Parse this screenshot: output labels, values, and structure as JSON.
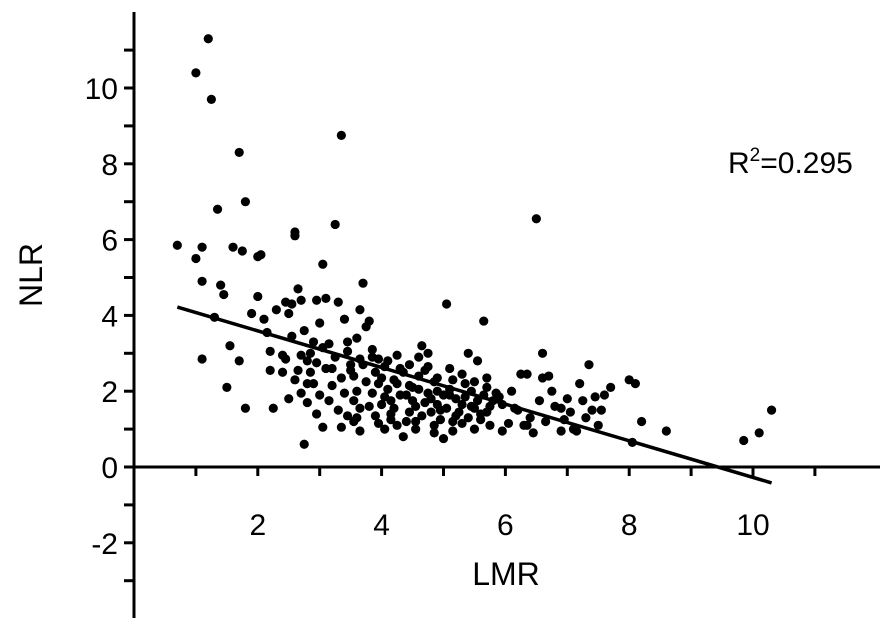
{
  "chart_data": {
    "type": "scatter",
    "title": "",
    "xlabel": "LMR",
    "ylabel": "NLR",
    "xlim": [
      0,
      12
    ],
    "ylim": [
      -4,
      12
    ],
    "x_ticks": [
      2,
      4,
      6,
      8,
      10
    ],
    "x_tick_labels": [
      "2",
      "4",
      "6",
      "8",
      "10"
    ],
    "y_ticks": [
      -2,
      0,
      2,
      4,
      6,
      8,
      10
    ],
    "y_tick_labels": [
      "-2",
      "0",
      "2",
      "4",
      "6",
      "8",
      "10"
    ],
    "grid": false,
    "annotation": {
      "prefix": "R",
      "superscript": "2",
      "suffix": "=0.295"
    },
    "trendline": {
      "x": [
        0.7,
        10.3
      ],
      "y": [
        4.22,
        -0.42
      ]
    },
    "colors": {
      "points": "#000000",
      "trendline": "#000000",
      "axes": "#000000"
    },
    "points": [
      [
        0.7,
        5.85
      ],
      [
        1.0,
        10.4
      ],
      [
        1.0,
        5.5
      ],
      [
        1.1,
        5.8
      ],
      [
        1.2,
        11.3
      ],
      [
        1.25,
        9.7
      ],
      [
        1.35,
        6.8
      ],
      [
        1.4,
        4.8
      ],
      [
        1.45,
        4.55
      ],
      [
        1.1,
        4.9
      ],
      [
        1.3,
        3.95
      ],
      [
        1.1,
        2.85
      ],
      [
        1.55,
        3.2
      ],
      [
        1.5,
        2.1
      ],
      [
        1.6,
        5.8
      ],
      [
        1.7,
        8.3
      ],
      [
        1.75,
        5.7
      ],
      [
        1.8,
        7.0
      ],
      [
        1.8,
        1.55
      ],
      [
        1.7,
        2.8
      ],
      [
        1.9,
        4.05
      ],
      [
        2.0,
        5.55
      ],
      [
        2.05,
        5.6
      ],
      [
        2.0,
        4.5
      ],
      [
        2.1,
        3.9
      ],
      [
        2.15,
        3.55
      ],
      [
        2.2,
        3.05
      ],
      [
        2.2,
        2.55
      ],
      [
        2.25,
        1.55
      ],
      [
        2.3,
        4.15
      ],
      [
        2.4,
        2.5
      ],
      [
        2.45,
        4.35
      ],
      [
        2.5,
        4.05
      ],
      [
        2.55,
        4.3
      ],
      [
        2.6,
        6.1
      ],
      [
        2.6,
        6.2
      ],
      [
        2.65,
        4.7
      ],
      [
        2.7,
        4.4
      ],
      [
        2.75,
        3.6
      ],
      [
        2.7,
        2.95
      ],
      [
        2.8,
        2.8
      ],
      [
        2.8,
        2.2
      ],
      [
        2.85,
        2.5
      ],
      [
        2.9,
        3.3
      ],
      [
        2.95,
        4.4
      ],
      [
        3.0,
        3.8
      ],
      [
        3.05,
        5.35
      ],
      [
        3.1,
        4.45
      ],
      [
        3.15,
        3.25
      ],
      [
        3.2,
        2.6
      ],
      [
        3.25,
        6.4
      ],
      [
        3.3,
        4.35
      ],
      [
        3.35,
        8.75
      ],
      [
        3.4,
        3.9
      ],
      [
        3.45,
        3.05
      ],
      [
        3.5,
        2.7
      ],
      [
        3.55,
        2.4
      ],
      [
        3.6,
        3.4
      ],
      [
        3.6,
        1.3
      ],
      [
        3.65,
        4.15
      ],
      [
        3.7,
        4.85
      ],
      [
        3.75,
        3.7
      ],
      [
        3.8,
        3.85
      ],
      [
        3.85,
        2.9
      ],
      [
        3.9,
        2.5
      ],
      [
        3.95,
        2.2
      ],
      [
        4.0,
        1.65
      ],
      [
        4.05,
        1.0
      ],
      [
        4.1,
        2.8
      ],
      [
        4.15,
        1.4
      ],
      [
        4.2,
        2.3
      ],
      [
        4.3,
        2.6
      ],
      [
        4.35,
        0.8
      ],
      [
        4.4,
        1.9
      ],
      [
        4.45,
        1.45
      ],
      [
        4.5,
        2.1
      ],
      [
        4.55,
        1.2
      ],
      [
        4.6,
        2.4
      ],
      [
        4.65,
        3.2
      ],
      [
        4.7,
        1.7
      ],
      [
        4.75,
        3.0
      ],
      [
        4.8,
        1.8
      ],
      [
        4.85,
        1.1
      ],
      [
        4.9,
        2.0
      ],
      [
        4.95,
        1.5
      ],
      [
        5.0,
        0.75
      ],
      [
        5.05,
        4.3
      ],
      [
        5.1,
        1.9
      ],
      [
        5.15,
        2.3
      ],
      [
        5.2,
        1.35
      ],
      [
        5.3,
        1.15
      ],
      [
        5.35,
        2.2
      ],
      [
        5.4,
        3.0
      ],
      [
        5.45,
        1.6
      ],
      [
        5.5,
        1.0
      ],
      [
        5.55,
        2.8
      ],
      [
        5.6,
        1.4
      ],
      [
        5.65,
        3.85
      ],
      [
        5.7,
        2.1
      ],
      [
        5.8,
        1.75
      ],
      [
        5.9,
        1.85
      ],
      [
        6.2,
        1.5
      ],
      [
        6.25,
        2.45
      ],
      [
        6.3,
        1.1
      ],
      [
        6.4,
        1.3
      ],
      [
        6.45,
        0.9
      ],
      [
        6.5,
        6.55
      ],
      [
        6.55,
        1.75
      ],
      [
        6.6,
        3.0
      ],
      [
        6.65,
        1.2
      ],
      [
        6.7,
        2.4
      ],
      [
        6.8,
        1.6
      ],
      [
        6.9,
        0.95
      ],
      [
        7.0,
        1.8
      ],
      [
        7.1,
        1.0
      ],
      [
        7.2,
        2.2
      ],
      [
        7.3,
        1.3
      ],
      [
        7.35,
        2.7
      ],
      [
        7.4,
        1.5
      ],
      [
        7.5,
        1.1
      ],
      [
        7.6,
        1.9
      ],
      [
        7.7,
        2.1
      ],
      [
        8.0,
        2.3
      ],
      [
        8.05,
        0.65
      ],
      [
        8.1,
        2.2
      ],
      [
        8.2,
        1.2
      ],
      [
        8.6,
        0.95
      ],
      [
        9.85,
        0.7
      ],
      [
        10.1,
        0.9
      ],
      [
        10.3,
        1.5
      ],
      [
        2.5,
        1.8
      ],
      [
        2.6,
        2.3
      ],
      [
        2.7,
        1.95
      ],
      [
        2.9,
        2.2
      ],
      [
        3.0,
        1.9
      ],
      [
        3.1,
        2.6
      ],
      [
        3.15,
        1.75
      ],
      [
        3.2,
        2.15
      ],
      [
        3.3,
        1.5
      ],
      [
        3.35,
        2.35
      ],
      [
        3.4,
        1.95
      ],
      [
        3.45,
        1.35
      ],
      [
        3.5,
        2.55
      ],
      [
        3.55,
        1.75
      ],
      [
        3.6,
        2.0
      ],
      [
        3.65,
        1.55
      ],
      [
        3.7,
        2.7
      ],
      [
        3.75,
        2.25
      ],
      [
        3.8,
        1.6
      ],
      [
        3.85,
        1.95
      ],
      [
        3.9,
        1.35
      ],
      [
        3.95,
        2.85
      ],
      [
        4.0,
        2.35
      ],
      [
        4.05,
        1.85
      ],
      [
        4.1,
        2.05
      ],
      [
        4.15,
        1.75
      ],
      [
        4.2,
        1.55
      ],
      [
        4.25,
        2.2
      ],
      [
        4.3,
        1.9
      ],
      [
        4.35,
        2.5
      ],
      [
        4.4,
        1.2
      ],
      [
        4.45,
        2.15
      ],
      [
        4.5,
        1.75
      ],
      [
        4.55,
        1.6
      ],
      [
        4.6,
        2.05
      ],
      [
        4.65,
        1.35
      ],
      [
        4.7,
        2.55
      ],
      [
        4.75,
        1.95
      ],
      [
        4.8,
        1.45
      ],
      [
        4.85,
        2.25
      ],
      [
        4.9,
        1.65
      ],
      [
        4.95,
        1.25
      ],
      [
        5.0,
        1.9
      ],
      [
        5.05,
        1.55
      ],
      [
        5.1,
        2.05
      ],
      [
        5.15,
        1.2
      ],
      [
        5.2,
        1.8
      ],
      [
        5.25,
        1.45
      ],
      [
        5.3,
        1.65
      ],
      [
        5.35,
        1.85
      ],
      [
        5.4,
        1.3
      ],
      [
        5.45,
        2.0
      ],
      [
        5.5,
        1.55
      ],
      [
        5.55,
        1.75
      ],
      [
        5.6,
        1.25
      ],
      [
        5.65,
        1.9
      ],
      [
        5.7,
        1.45
      ],
      [
        5.75,
        1.6
      ],
      [
        5.85,
        1.95
      ],
      [
        5.95,
        1.65
      ],
      [
        2.4,
        2.95
      ],
      [
        2.55,
        3.45
      ],
      [
        2.85,
        3.0
      ],
      [
        2.95,
        2.75
      ],
      [
        3.05,
        3.15
      ],
      [
        3.25,
        2.9
      ],
      [
        3.45,
        3.3
      ],
      [
        3.65,
        2.85
      ],
      [
        3.85,
        3.1
      ],
      [
        4.05,
        2.65
      ],
      [
        4.25,
        2.95
      ],
      [
        4.45,
        2.7
      ],
      [
        4.6,
        2.9
      ],
      [
        4.75,
        2.65
      ],
      [
        4.9,
        2.35
      ],
      [
        5.1,
        2.6
      ],
      [
        5.3,
        2.45
      ],
      [
        5.5,
        2.25
      ],
      [
        5.7,
        2.35
      ],
      [
        6.1,
        2.0
      ],
      [
        6.35,
        2.45
      ],
      [
        6.6,
        2.35
      ],
      [
        6.75,
        2.0
      ],
      [
        6.9,
        1.55
      ],
      [
        7.05,
        1.45
      ],
      [
        7.25,
        1.75
      ],
      [
        7.45,
        1.85
      ],
      [
        7.55,
        1.5
      ],
      [
        7.15,
        0.95
      ],
      [
        6.95,
        1.25
      ],
      [
        6.35,
        1.1
      ],
      [
        6.15,
        1.55
      ],
      [
        6.05,
        1.15
      ],
      [
        5.95,
        0.95
      ],
      [
        5.75,
        1.1
      ],
      [
        5.15,
        0.95
      ],
      [
        4.55,
        1.0
      ],
      [
        4.25,
        1.1
      ],
      [
        3.95,
        1.15
      ],
      [
        3.65,
        0.95
      ],
      [
        3.35,
        1.05
      ],
      [
        3.05,
        1.05
      ],
      [
        2.95,
        1.4
      ],
      [
        2.75,
        0.6
      ],
      [
        2.8,
        1.7
      ],
      [
        2.65,
        2.55
      ],
      [
        2.45,
        2.85
      ],
      [
        3.55,
        1.2
      ],
      [
        4.15,
        1.25
      ],
      [
        4.85,
        0.9
      ]
    ]
  }
}
